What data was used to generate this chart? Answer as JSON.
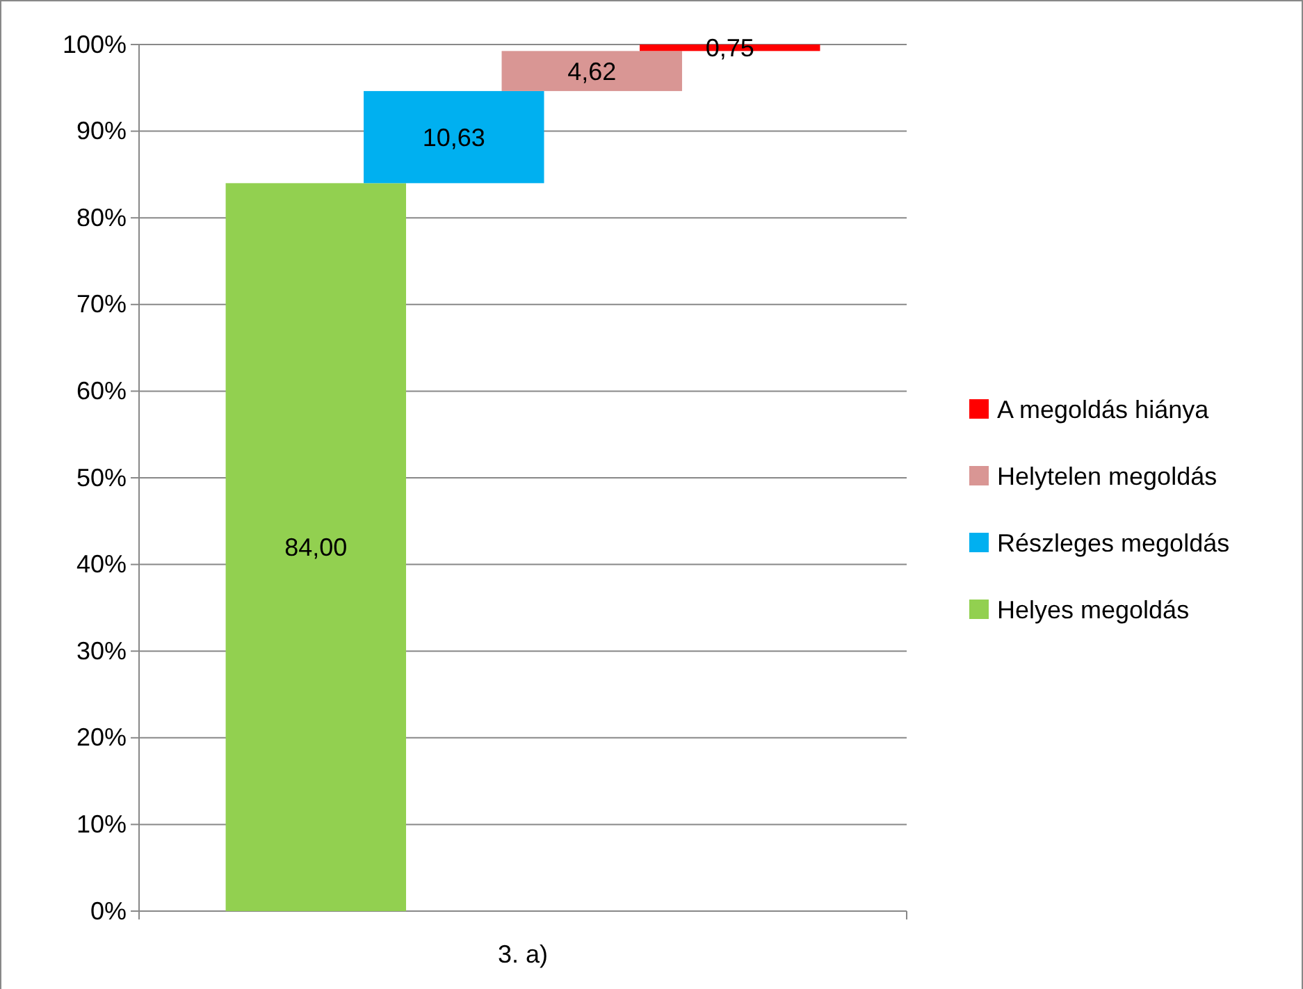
{
  "chart_data": {
    "type": "bar",
    "categories": [
      "3. a)"
    ],
    "series": [
      {
        "name": "Helyes megoldás",
        "color": "#92d050",
        "values": [
          84.0
        ],
        "base": [
          0
        ],
        "value_labels": [
          "84,00"
        ]
      },
      {
        "name": "Részleges megoldás",
        "color": "#00b0f0",
        "values": [
          10.63
        ],
        "base": [
          84.0
        ],
        "value_labels": [
          "10,63"
        ]
      },
      {
        "name": "Helytelen megoldás",
        "color": "#d99694",
        "values": [
          4.62
        ],
        "base": [
          94.63
        ],
        "value_labels": [
          "4,62"
        ]
      },
      {
        "name": "A megoldás hiánya",
        "color": "#ff0000",
        "values": [
          0.75
        ],
        "base": [
          99.25
        ],
        "value_labels": [
          "0,75"
        ]
      }
    ],
    "ylim": [
      0,
      100
    ],
    "yticks": [
      {
        "value": 0,
        "label": "0%"
      },
      {
        "value": 10,
        "label": "10%"
      },
      {
        "value": 20,
        "label": "20%"
      },
      {
        "value": 30,
        "label": "30%"
      },
      {
        "value": 40,
        "label": "40%"
      },
      {
        "value": 50,
        "label": "50%"
      },
      {
        "value": 60,
        "label": "60%"
      },
      {
        "value": 70,
        "label": "70%"
      },
      {
        "value": 80,
        "label": "80%"
      },
      {
        "value": 90,
        "label": "90%"
      },
      {
        "value": 100,
        "label": "100%"
      }
    ],
    "grid": "y",
    "legend": "right"
  }
}
